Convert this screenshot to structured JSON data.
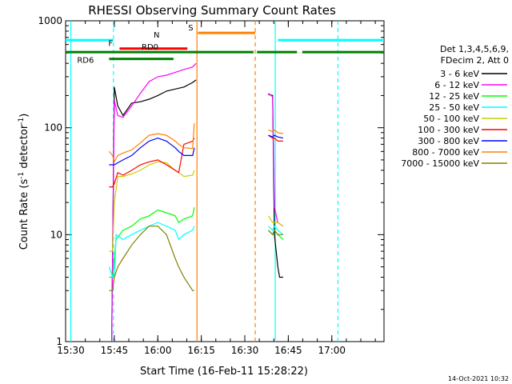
{
  "chart_data": {
    "type": "line",
    "title": "RHESSI Observing Summary Count Rates",
    "xlabel": "Start Time (16-Feb-11 15:28:22)",
    "ylabel_main": "Count Rate (s",
    "ylabel_sup1": "-1",
    "ylabel_mid": " detector",
    "ylabel_sup2": "-1",
    "ylabel_end": ")",
    "yscale": "log",
    "ylim": [
      1,
      1000
    ],
    "xlim": [
      15.47,
      17.3
    ],
    "x_ticks": [
      {
        "v": 15.5,
        "label": "15:30"
      },
      {
        "v": 15.75,
        "label": "15:45"
      },
      {
        "v": 16.0,
        "label": "16:00"
      },
      {
        "v": 16.25,
        "label": "16:15"
      },
      {
        "v": 16.5,
        "label": "16:30"
      },
      {
        "v": 16.75,
        "label": "16:45"
      },
      {
        "v": 17.0,
        "label": "17:00"
      }
    ],
    "y_ticks": [
      {
        "v": 1,
        "label": "1"
      },
      {
        "v": 10,
        "label": "10"
      },
      {
        "v": 100,
        "label": "100"
      },
      {
        "v": 1000,
        "label": "1000"
      }
    ],
    "legend_header": [
      "Det 1,3,4,5,6,9,",
      "FDecim 2, Att 0"
    ],
    "legend_placement": "right",
    "timestamp": "14-Oct-2021 10:32",
    "series": [
      {
        "name": "3 - 6 keV",
        "color": "#000000",
        "x": [
          15.72,
          15.735,
          15.75,
          15.77,
          15.8,
          15.85,
          15.9,
          15.95,
          16.0,
          16.05,
          16.1,
          16.15,
          16.2,
          16.22,
          16.6,
          16.635,
          16.66,
          16.67,
          16.69,
          16.7,
          16.72
        ],
        "y": [
          null,
          1,
          240,
          160,
          130,
          170,
          175,
          185,
          200,
          220,
          230,
          240,
          265,
          280,
          null,
          205,
          200,
          10,
          5,
          4,
          4
        ]
      },
      {
        "name": "6 - 12 keV",
        "color": "#ff00ff",
        "x": [
          15.735,
          15.75,
          15.77,
          15.8,
          15.85,
          15.9,
          15.95,
          16.0,
          16.05,
          16.1,
          16.15,
          16.2,
          16.22,
          16.6,
          16.635,
          16.66,
          16.67,
          16.69,
          16.72
        ],
        "y": [
          1,
          180,
          130,
          125,
          160,
          210,
          270,
          300,
          310,
          330,
          350,
          370,
          400,
          null,
          210,
          195,
          18,
          13,
          12
        ]
      },
      {
        "name": "12 - 25 keV",
        "color": "#00ff00",
        "x": [
          15.72,
          15.74,
          15.76,
          15.8,
          15.85,
          15.9,
          15.95,
          16.0,
          16.05,
          16.1,
          16.12,
          16.15,
          16.2,
          16.21,
          16.6,
          16.635,
          16.66,
          16.67,
          16.69,
          16.72
        ],
        "y": [
          4,
          4,
          9,
          11,
          12,
          14,
          15,
          17,
          16,
          15,
          13,
          14,
          15,
          18,
          null,
          11,
          10,
          11,
          10,
          9
        ]
      },
      {
        "name": "25 - 50 keV",
        "color": "#00ffff",
        "x": [
          15.72,
          15.74,
          15.75,
          15.76,
          15.8,
          15.85,
          15.9,
          15.95,
          16.0,
          16.05,
          16.1,
          16.12,
          16.15,
          16.2,
          16.21,
          16.6,
          16.635,
          16.66,
          16.67,
          16.69,
          16.72
        ],
        "y": [
          5,
          4,
          4,
          10,
          9,
          10,
          11,
          12,
          13,
          12,
          11,
          9,
          10,
          11,
          12,
          null,
          12,
          11,
          12,
          11,
          10
        ]
      },
      {
        "name": "50 - 100 keV",
        "color": "#cccc00",
        "x": [
          15.72,
          15.74,
          15.75,
          15.77,
          15.8,
          15.85,
          15.9,
          15.95,
          16.0,
          16.05,
          16.1,
          16.12,
          16.15,
          16.2,
          16.21,
          16.6,
          16.635,
          16.66,
          16.67,
          16.69,
          16.72
        ],
        "y": [
          7,
          7,
          20,
          35,
          35,
          37,
          40,
          45,
          48,
          47,
          40,
          38,
          35,
          36,
          40,
          null,
          15,
          13,
          13,
          13,
          12
        ]
      },
      {
        "name": "100 - 300 keV",
        "color": "#ff0000",
        "x": [
          15.72,
          15.74,
          15.75,
          15.77,
          15.8,
          15.85,
          15.9,
          15.95,
          16.0,
          16.05,
          16.1,
          16.12,
          16.15,
          16.2,
          16.21,
          16.6,
          16.635,
          16.66,
          16.67,
          16.69,
          16.72
        ],
        "y": [
          28,
          28,
          30,
          38,
          36,
          40,
          45,
          48,
          50,
          45,
          40,
          38,
          70,
          75,
          80,
          null,
          85,
          80,
          80,
          75,
          75
        ]
      },
      {
        "name": "300 - 800 keV",
        "color": "#0000ff",
        "x": [
          15.72,
          15.74,
          15.75,
          15.77,
          15.8,
          15.85,
          15.9,
          15.95,
          16.0,
          16.05,
          16.1,
          16.12,
          16.15,
          16.2,
          16.21,
          16.6,
          16.635,
          16.66,
          16.67,
          16.69,
          16.72
        ],
        "y": [
          45,
          45,
          45,
          47,
          50,
          55,
          65,
          75,
          80,
          75,
          65,
          60,
          55,
          55,
          65,
          null,
          85,
          82,
          85,
          82,
          80
        ]
      },
      {
        "name": "800 - 7000 keV",
        "color": "#ff8000",
        "x": [
          15.72,
          15.74,
          15.75,
          15.77,
          15.8,
          15.85,
          15.9,
          15.95,
          16.0,
          16.05,
          16.1,
          16.12,
          16.15,
          16.2,
          16.21,
          16.6,
          16.635,
          16.66,
          16.67,
          16.69,
          16.72
        ],
        "y": [
          60,
          55,
          48,
          55,
          58,
          62,
          72,
          85,
          88,
          85,
          75,
          70,
          65,
          64,
          110,
          null,
          95,
          92,
          95,
          90,
          88
        ]
      },
      {
        "name": "7000 - 15000 keV",
        "color": "#808000",
        "x": [
          15.72,
          15.74,
          15.75,
          15.77,
          15.8,
          15.85,
          15.9,
          15.95,
          16.0,
          16.05,
          16.1,
          16.12,
          16.15,
          16.2,
          16.21,
          16.6,
          16.635,
          16.66,
          16.67,
          16.69,
          16.72
        ],
        "y": [
          3,
          3,
          4,
          5,
          6,
          8,
          10,
          12,
          12,
          10,
          6,
          5,
          4,
          3,
          3,
          null,
          11,
          10,
          11,
          10,
          10
        ]
      }
    ],
    "flag_bars": [
      {
        "label": "N",
        "color": "#00ffff",
        "y": 660,
        "segments": [
          [
            15.47,
            15.745
          ],
          [
            16.69,
            17.3
          ]
        ]
      },
      {
        "label": "F",
        "color": "#ff0000",
        "y": 550,
        "segments": [
          [
            15.78,
            16.17
          ]
        ]
      },
      {
        "label": "RD0",
        "color": "#008000",
        "y": 510,
        "segments": [
          [
            15.47,
            16.55
          ],
          [
            16.57,
            16.8
          ],
          [
            16.83,
            17.3
          ]
        ]
      },
      {
        "label": "RD6",
        "color": "#008000",
        "y": 440,
        "segments": [
          [
            15.72,
            16.09
          ]
        ]
      },
      {
        "label": "S",
        "color": "#ff8000",
        "y": 770,
        "segments": [
          [
            16.23,
            16.56
          ]
        ]
      }
    ],
    "vertical_lines": [
      {
        "x": 15.745,
        "color": "#00ffff",
        "dashed": true
      },
      {
        "x": 16.225,
        "color": "#ff8000",
        "dashed": false
      },
      {
        "x": 16.56,
        "color": "#ff8000",
        "dashed": true
      },
      {
        "x": 16.675,
        "color": "#00ffff",
        "dashed": false
      },
      {
        "x": 17.035,
        "color": "#00ffff",
        "dashed": true
      },
      {
        "x": 15.5,
        "color": "#00ffff",
        "dashed": false
      }
    ]
  }
}
